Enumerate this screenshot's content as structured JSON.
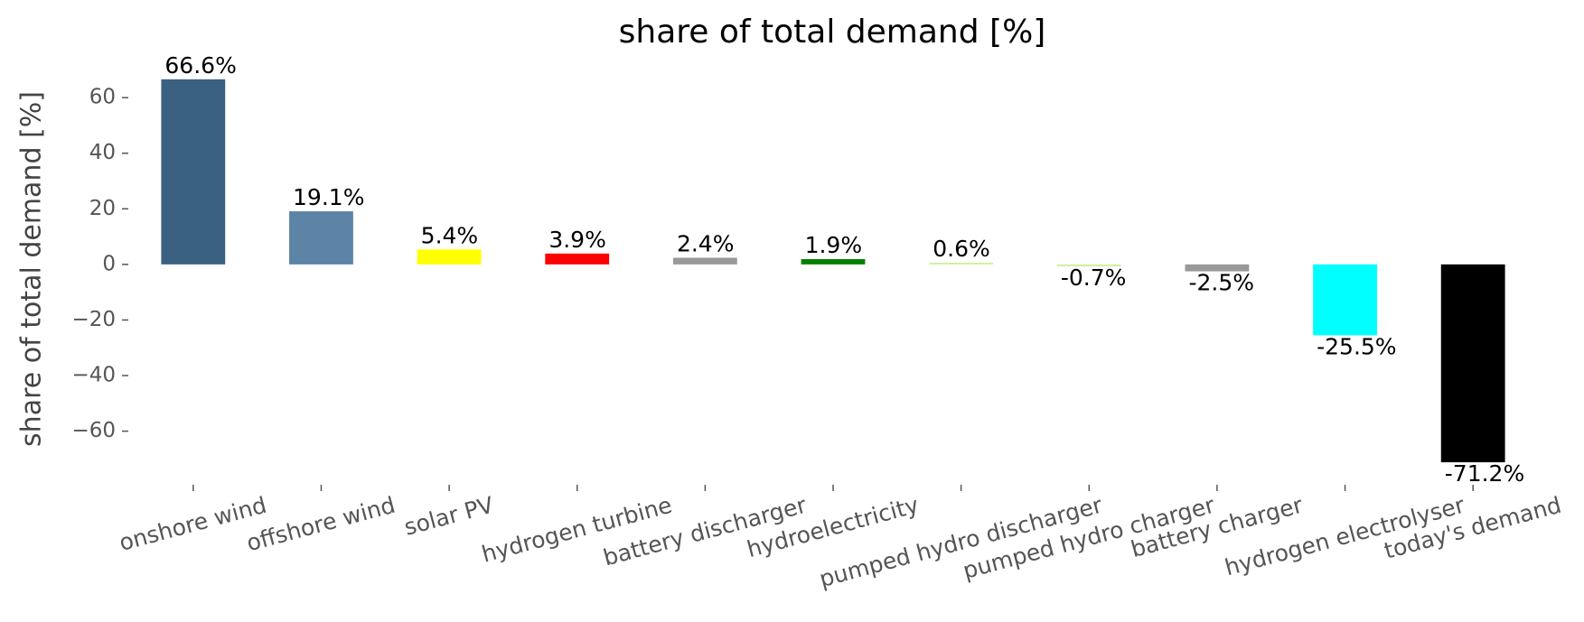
{
  "chart_data": {
    "type": "bar",
    "title": "share of total demand [%]",
    "ylabel": "share of total demand [%]",
    "categories": [
      "onshore wind",
      "offshore wind",
      "solar PV",
      "hydrogen turbine",
      "battery discharger",
      "hydroelectricity",
      "pumped hydro discharger",
      "pumped hydro charger",
      "battery charger",
      "hydrogen electrolyser",
      "today's demand"
    ],
    "values": [
      66.6,
      19.1,
      5.4,
      3.9,
      2.4,
      1.9,
      0.6,
      -0.7,
      -2.5,
      -25.5,
      -71.2
    ],
    "value_labels": [
      "66.6%",
      "19.1%",
      "5.4%",
      "3.9%",
      "2.4%",
      "1.9%",
      "0.6%",
      "-0.7%",
      "-2.5%",
      "-25.5%",
      "-71.2%"
    ],
    "colors": [
      "#3b6182",
      "#5b84a6",
      "#ffff00",
      "#ff0000",
      "#999999",
      "#008000",
      "#d4ee9f",
      "#d4ee9f",
      "#999999",
      "#00ffff",
      "#000000"
    ],
    "ylim": [
      -78,
      75
    ],
    "yticks": [
      {
        "value": -60,
        "label": "−60"
      },
      {
        "value": -40,
        "label": "−40"
      },
      {
        "value": -20,
        "label": "−20"
      },
      0,
      20,
      40,
      60
    ],
    "grid": false
  }
}
